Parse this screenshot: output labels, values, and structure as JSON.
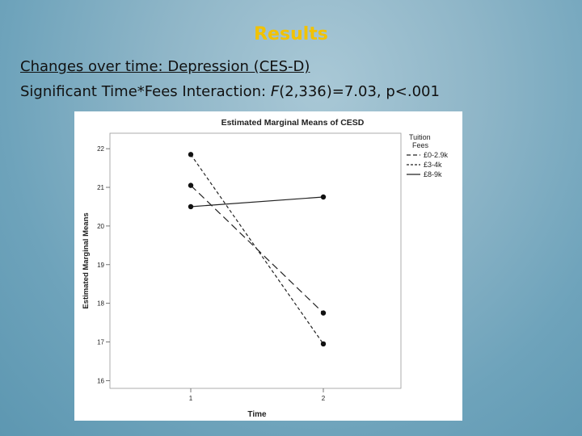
{
  "slide": {
    "title": "Results",
    "subtitle_line1": "Changes over time: Depression (CES-D)",
    "subtitle_line2_prefix": "Significant Time*Fees Interaction: ",
    "subtitle_line2_stat": "F",
    "subtitle_line2_suffix": "(2,336)=7.03, p<.001"
  },
  "chart_data": {
    "type": "line",
    "title": "Estimated Marginal Means of CESD",
    "xlabel": "Time",
    "ylabel": "Estimated Marginal Means",
    "categories": [
      "1",
      "2"
    ],
    "ylim": [
      15.8,
      22.4
    ],
    "yticks": [
      16,
      17,
      18,
      19,
      20,
      21,
      22
    ],
    "legend_title_line1": "Tuition",
    "legend_title_line2": "Fees",
    "legend_placement": "right",
    "grid": false,
    "series": [
      {
        "name": "£0-2.9k",
        "values": [
          21.05,
          17.75
        ],
        "style": "longdash"
      },
      {
        "name": "£3-4k",
        "values": [
          21.85,
          16.95
        ],
        "style": "shortdash"
      },
      {
        "name": "£8-9k",
        "values": [
          20.5,
          20.75
        ],
        "style": "solid"
      }
    ]
  }
}
